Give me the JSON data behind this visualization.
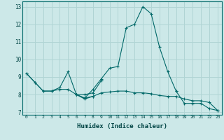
{
  "xlabel": "Humidex (Indice chaleur)",
  "background_color": "#cce8e8",
  "grid_color": "#b0d4d4",
  "line_color": "#006868",
  "xlim": [
    -0.5,
    23.5
  ],
  "ylim": [
    6.85,
    13.3
  ],
  "yticks": [
    7,
    8,
    9,
    10,
    11,
    12,
    13
  ],
  "xticks": [
    0,
    1,
    2,
    3,
    4,
    5,
    6,
    7,
    8,
    9,
    10,
    11,
    12,
    13,
    14,
    15,
    16,
    17,
    18,
    19,
    20,
    21,
    22,
    23
  ],
  "series": [
    [
      9.2,
      8.7,
      8.2,
      8.2,
      8.4,
      9.3,
      8.0,
      7.8,
      8.3,
      8.9,
      9.5,
      9.6,
      11.8,
      12.0,
      13.0,
      12.6,
      10.7,
      9.3,
      8.2,
      7.5,
      7.5,
      7.5,
      7.2,
      7.1
    ],
    [
      9.2,
      8.7,
      8.2,
      8.2,
      8.3,
      8.3,
      8.0,
      8.0,
      8.1,
      8.8,
      null,
      null,
      null,
      null,
      null,
      null,
      null,
      null,
      8.2,
      null,
      null,
      null,
      null,
      null
    ],
    [
      null,
      null,
      null,
      null,
      null,
      null,
      8.0,
      7.8,
      7.9,
      null,
      null,
      null,
      null,
      null,
      null,
      null,
      null,
      null,
      null,
      null,
      null,
      null,
      null,
      null
    ],
    [
      null,
      null,
      null,
      null,
      null,
      null,
      8.0,
      7.75,
      7.9,
      8.1,
      8.15,
      8.2,
      8.2,
      8.1,
      8.1,
      8.05,
      7.95,
      7.9,
      7.9,
      7.75,
      7.65,
      7.65,
      7.55,
      7.1
    ]
  ]
}
